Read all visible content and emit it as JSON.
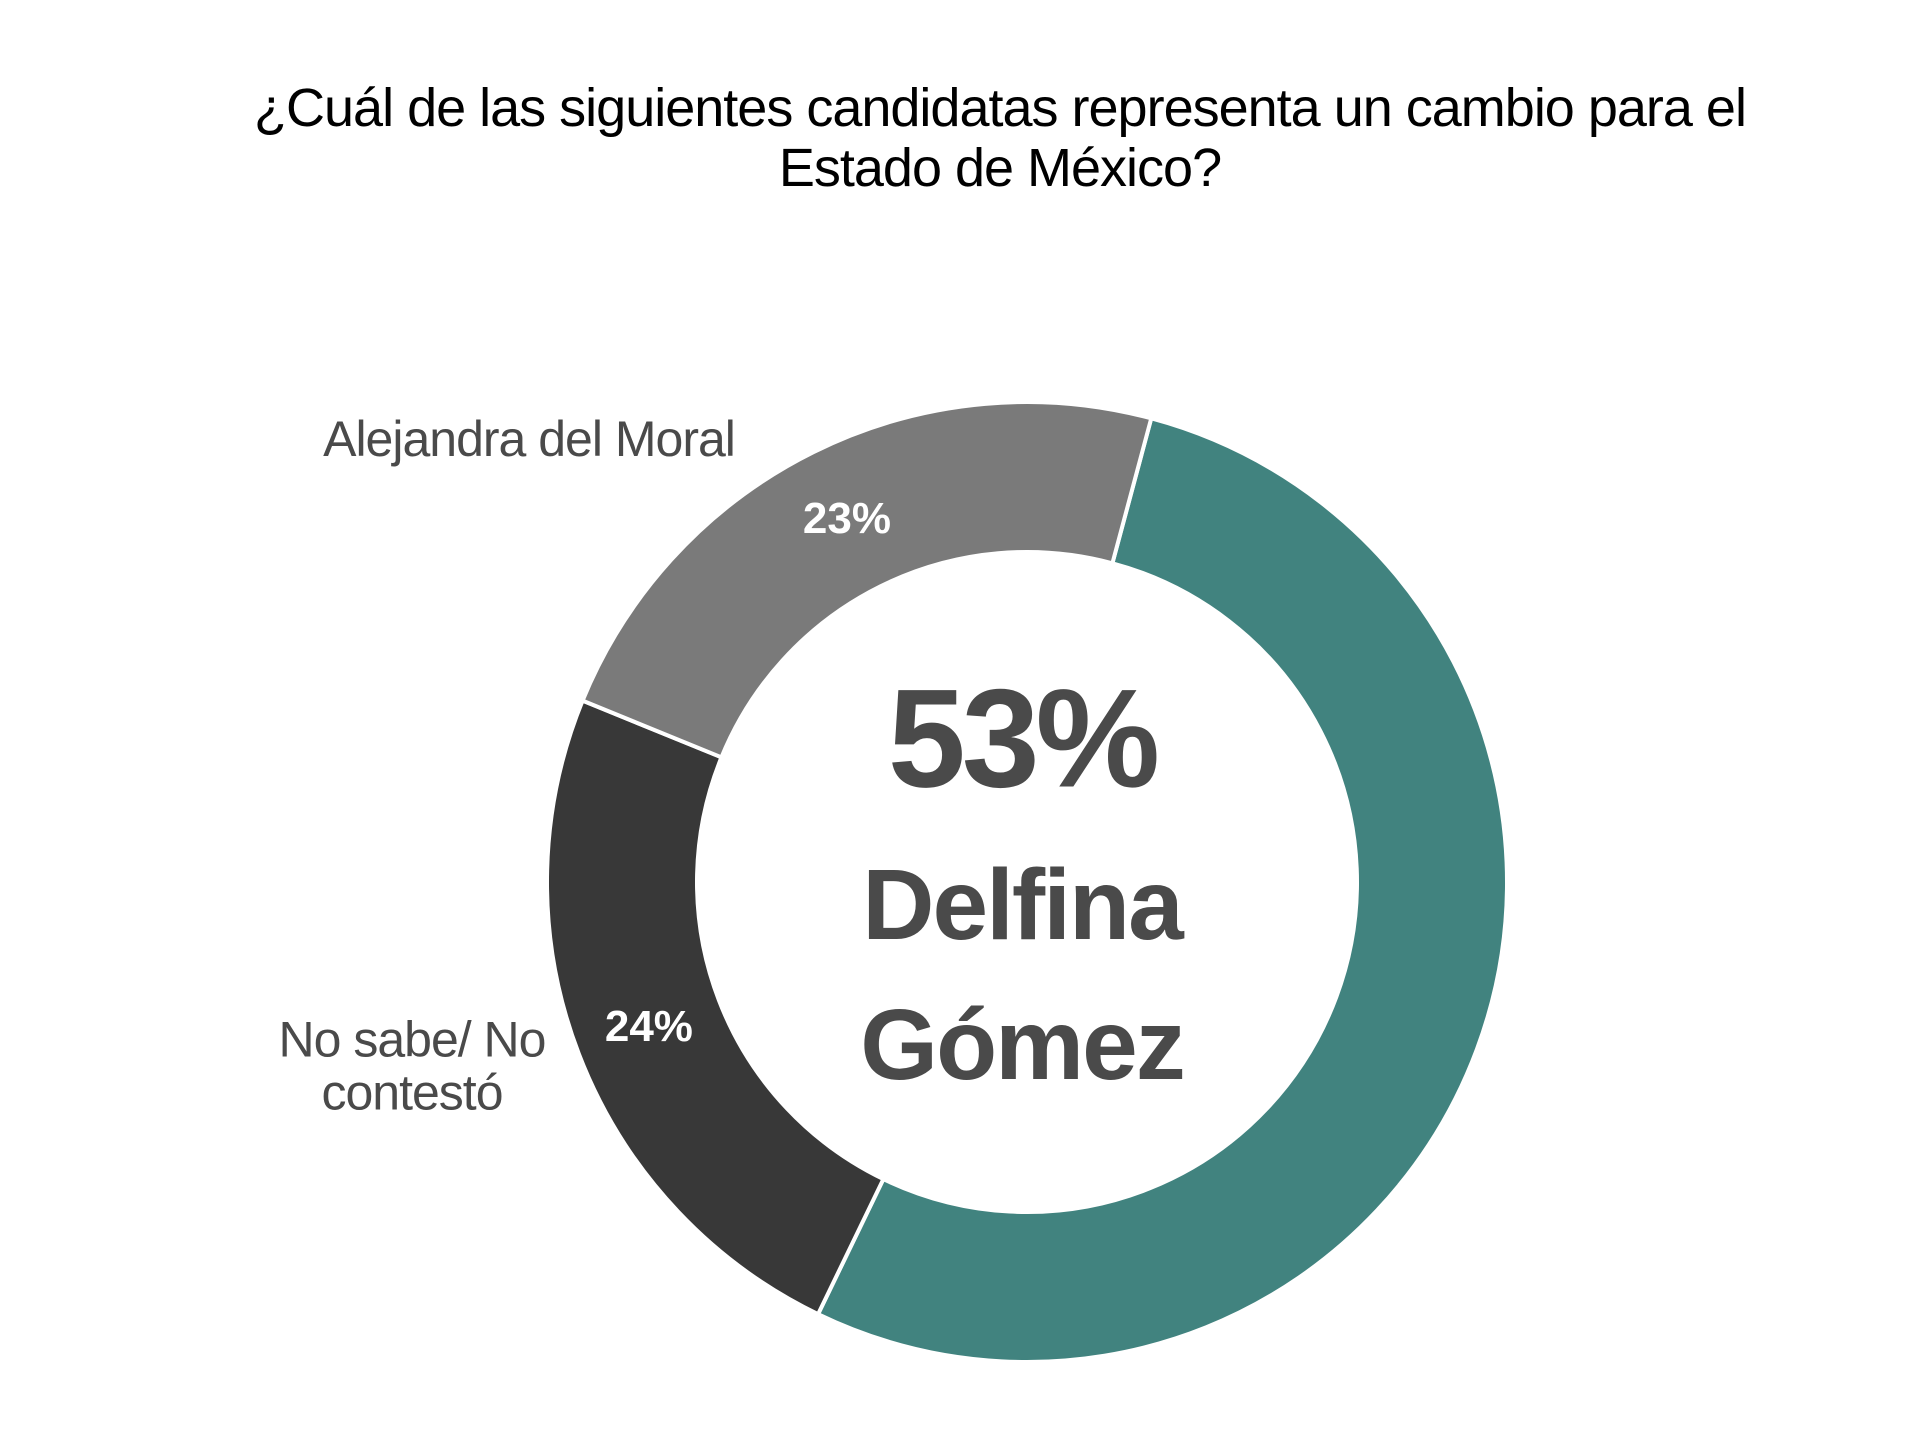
{
  "chart_data": {
    "type": "donut",
    "title": "¿Cuál de las siguientes candidatas representa un cambio para el Estado de México?",
    "categories": [
      "Delfina Gómez",
      "No sabe/ No contestó",
      "Alejandra del Moral"
    ],
    "values": [
      53,
      24,
      23
    ],
    "value_labels": [
      "53%",
      "24%",
      "23%"
    ],
    "colors": [
      "#41837f",
      "#383838",
      "#7a7a7a"
    ]
  }
}
